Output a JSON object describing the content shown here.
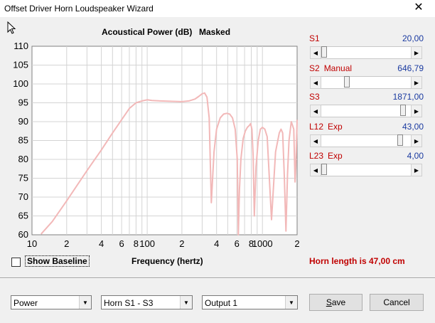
{
  "window": {
    "title": "Offset Driver Horn Loudspeaker Wizard",
    "close_glyph": "✕"
  },
  "chart_data": {
    "type": "line",
    "title": "Acoustical Power (dB)",
    "subtitle": "Masked",
    "xlabel": "Frequency (hertz)",
    "ylabel": "",
    "x_scale": "log",
    "xlim": [
      10,
      2000
    ],
    "ylim": [
      60,
      110
    ],
    "grid": true,
    "y_ticks": [
      60,
      65,
      70,
      75,
      80,
      85,
      90,
      95,
      100,
      105,
      110
    ],
    "x_tick_labels": [
      {
        "value": 10,
        "label": "10"
      },
      {
        "value": 20,
        "label": "2"
      },
      {
        "value": 40,
        "label": "4"
      },
      {
        "value": 60,
        "label": "6"
      },
      {
        "value": 80,
        "label": "8"
      },
      {
        "value": 100,
        "label": "100"
      },
      {
        "value": 200,
        "label": "2"
      },
      {
        "value": 400,
        "label": "4"
      },
      {
        "value": 600,
        "label": "6"
      },
      {
        "value": 800,
        "label": "8"
      },
      {
        "value": 1000,
        "label": "1000"
      },
      {
        "value": 2000,
        "label": "2"
      }
    ],
    "series_color": "#f2b8b8",
    "series": [
      {
        "x": [
          12,
          15,
          20,
          30,
          40,
          50,
          60,
          70,
          80,
          90,
          100,
          110,
          130,
          160,
          200,
          230,
          260,
          280,
          300,
          315,
          330,
          345,
          360,
          380,
          400,
          430,
          460,
          490,
          520,
          550,
          580,
          605,
          618,
          632,
          650,
          680,
          710,
          740,
          770,
          790,
          810,
          830,
          850,
          880,
          920,
          960,
          1000,
          1050,
          1100,
          1200,
          1300,
          1400,
          1450,
          1500,
          1550,
          1600,
          1650,
          1700,
          1780,
          1870,
          1920,
          1950,
          2000
        ],
        "y": [
          60.2,
          63.5,
          69,
          77,
          82.5,
          87,
          90.5,
          93.5,
          95,
          95.5,
          95.8,
          95.6,
          95.5,
          95.4,
          95.3,
          95.5,
          96,
          96.7,
          97.4,
          97.6,
          96.5,
          91,
          68.5,
          82,
          88,
          91,
          92,
          92.2,
          92,
          91,
          88,
          80,
          60,
          72,
          80,
          85.5,
          87.5,
          88.5,
          89,
          89.5,
          88,
          81,
          65,
          78,
          85,
          88,
          88.5,
          88,
          86,
          64,
          82,
          87,
          88,
          87,
          75,
          61,
          76,
          85,
          90,
          88,
          74,
          78,
          90.5
        ]
      }
    ]
  },
  "params": [
    {
      "label": "S1",
      "mode": "",
      "value": "20,00",
      "pos": 0.0
    },
    {
      "label": "S2",
      "mode": "Manual",
      "value": "646,79",
      "pos": 0.27
    },
    {
      "label": "S3",
      "mode": "",
      "value": "1871,00",
      "pos": 0.94
    },
    {
      "label": "L12",
      "mode": "Exp",
      "value": "43,00",
      "pos": 0.91
    },
    {
      "label": "L23",
      "mode": "Exp",
      "value": "4,00",
      "pos": 0.0
    }
  ],
  "show_baseline_label": "Show Baseline",
  "horn_length_text": "Horn length is 47,00 cm",
  "combos": {
    "mode": "Power",
    "section": "Horn S1 - S3",
    "output": "Output 1"
  },
  "buttons": {
    "save_u": "S",
    "save_rest": "ave",
    "cancel": "Cancel"
  }
}
